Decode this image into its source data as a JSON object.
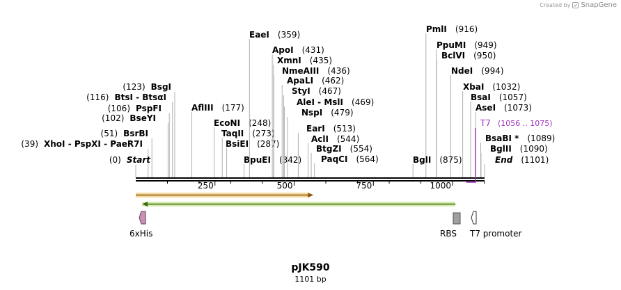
{
  "credit": {
    "created_by": "Created by",
    "brand": "SnapGene"
  },
  "plasmid": {
    "name": "pJK590",
    "length_text": "1101 bp",
    "length": 1101
  },
  "colors": {
    "backbone": "#000000",
    "orf_orange_fill": "#f5d9a0",
    "orf_orange_stroke": "#e0a030",
    "orf_green_fill": "#d8ecb0",
    "orf_green_stroke": "#7fbf40",
    "tag_6xhis": "#c992b4",
    "rbs": "#a0a0a0",
    "t7_label": "#a030c0"
  },
  "axis": {
    "ticks": [
      250,
      500,
      750,
      1000
    ],
    "minor": [
      100,
      200,
      300,
      400,
      600,
      700,
      800,
      900,
      1100
    ]
  },
  "sites_left": [
    {
      "name": "BsgI",
      "pos_text": "(123)",
      "pos": 123
    },
    {
      "name": "BtsI - BtsαI",
      "pos_text": "(116)",
      "pos": 116
    },
    {
      "name": "PspFI",
      "pos_text": "(106)",
      "pos": 106
    },
    {
      "name": "BseYI",
      "pos_text": "(102)",
      "pos": 102
    },
    {
      "name": "BsrBI",
      "pos_text": "(51)",
      "pos": 51
    },
    {
      "name": "XhoI - PspXI - PaeR7I",
      "pos_text": "(39)",
      "pos": 39
    },
    {
      "name": "Start",
      "pos_text": "(0)",
      "pos": 0
    }
  ],
  "sites_middle": [
    {
      "name": "AflIII",
      "pos_text": "(177)",
      "pos": 177
    },
    {
      "name": "EcoNI",
      "pos_text": "(248)",
      "pos": 248
    },
    {
      "name": "TaqII",
      "pos_text": "(273)",
      "pos": 273
    },
    {
      "name": "BsiEI",
      "pos_text": "(287)",
      "pos": 287
    },
    {
      "name": "BpuEI",
      "pos_text": "(342)",
      "pos": 342
    },
    {
      "name": "EaeI",
      "pos_text": "(359)",
      "pos": 359
    },
    {
      "name": "ApoI",
      "pos_text": "(431)",
      "pos": 431
    },
    {
      "name": "XmnI",
      "pos_text": "(435)",
      "pos": 435
    },
    {
      "name": "NmeAIII",
      "pos_text": "(436)",
      "pos": 436
    },
    {
      "name": "ApaLI",
      "pos_text": "(462)",
      "pos": 462
    },
    {
      "name": "StyI",
      "pos_text": "(467)",
      "pos": 467
    },
    {
      "name": "AleI - MslI",
      "pos_text": "(469)",
      "pos": 469
    },
    {
      "name": "NspI",
      "pos_text": "(479)",
      "pos": 479
    },
    {
      "name": "EarI",
      "pos_text": "(513)",
      "pos": 513
    },
    {
      "name": "AclI",
      "pos_text": "(544)",
      "pos": 544
    },
    {
      "name": "BtgZI",
      "pos_text": "(554)",
      "pos": 554
    },
    {
      "name": "PaqCI",
      "pos_text": "(564)",
      "pos": 564
    }
  ],
  "sites_right": [
    {
      "name": "PmlI",
      "pos_text": "(916)",
      "pos": 916
    },
    {
      "name": "PpuMI",
      "pos_text": "(949)",
      "pos": 949
    },
    {
      "name": "BclVI",
      "pos_text": "(950)",
      "pos": 950
    },
    {
      "name": "NdeI",
      "pos_text": "(994)",
      "pos": 994
    },
    {
      "name": "XbaI",
      "pos_text": "(1032)",
      "pos": 1032
    },
    {
      "name": "BsaI",
      "pos_text": "(1057)",
      "pos": 1057
    },
    {
      "name": "AseI",
      "pos_text": "(1073)",
      "pos": 1073
    },
    {
      "name": "BsaBI *",
      "pos_text": "(1089)",
      "pos": 1089
    },
    {
      "name": "BglII",
      "pos_text": "(1090)",
      "pos": 1090
    },
    {
      "name": "End",
      "pos_text": "(1101)",
      "pos": 1101
    },
    {
      "name": "BglI",
      "pos_text": "(875)",
      "pos": 875
    }
  ],
  "t7_site": {
    "name": "T7",
    "range_text": "(1056 .. 1075)",
    "start": 1056,
    "end": 1075
  },
  "features": [
    {
      "name": "6xHis",
      "type": "tag",
      "start": 22,
      "end": 39
    },
    {
      "name": "RBS",
      "type": "rbs",
      "start": 1007,
      "end": 1029
    },
    {
      "name": "T7 promoter",
      "type": "promoter",
      "start": 1083,
      "end": 1101
    }
  ],
  "orfs": [
    {
      "label": "orf-forward",
      "start": 0,
      "end": 561,
      "direction": "forward"
    },
    {
      "label": "orf-reverse",
      "start": 20,
      "end": 1009,
      "direction": "reverse"
    }
  ]
}
